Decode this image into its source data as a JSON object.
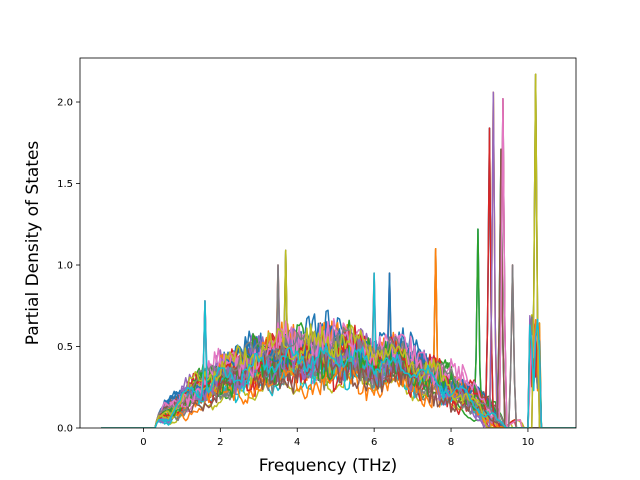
{
  "chart_data": {
    "type": "line",
    "title": "",
    "xlabel": "Frequency (THz)",
    "ylabel": "Partial Density of States",
    "xlim": [
      -1.65,
      11.25
    ],
    "ylim": [
      0.0,
      2.27
    ],
    "xticks": [
      0,
      2,
      4,
      6,
      8,
      10
    ],
    "yticks": [
      0.0,
      0.5,
      1.0,
      1.5,
      2.0
    ],
    "ytick_labels": [
      "0.0",
      "0.5",
      "1.0",
      "1.5",
      "2.0"
    ],
    "grid": false,
    "legend": "none",
    "series_count": 40,
    "x_range_of_data": [
      -1.1,
      11.3
    ],
    "color_cycle": [
      "#1f77b4",
      "#ff7f0e",
      "#2ca02c",
      "#d62728",
      "#9467bd",
      "#8c564b",
      "#e377c2",
      "#7f7f7f",
      "#bcbd22",
      "#17becf"
    ],
    "notable_peaks": [
      {
        "x": 1.6,
        "y": 0.78
      },
      {
        "x": 3.5,
        "y": 1.0
      },
      {
        "x": 3.7,
        "y": 1.09
      },
      {
        "x": 6.0,
        "y": 0.95
      },
      {
        "x": 6.4,
        "y": 0.95
      },
      {
        "x": 7.6,
        "y": 1.1
      },
      {
        "x": 8.7,
        "y": 1.22
      },
      {
        "x": 9.0,
        "y": 1.84
      },
      {
        "x": 9.1,
        "y": 2.06
      },
      {
        "x": 9.3,
        "y": 1.71
      },
      {
        "x": 9.35,
        "y": 2.02
      },
      {
        "x": 9.6,
        "y": 1.0
      },
      {
        "x": 10.2,
        "y": 2.17
      }
    ]
  }
}
